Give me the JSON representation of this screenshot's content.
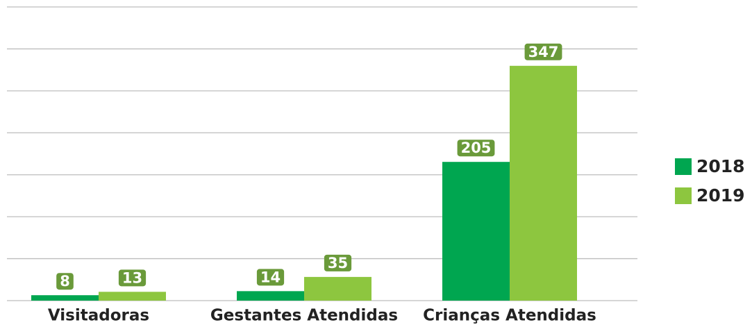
{
  "chart_data": {
    "type": "bar",
    "categories": [
      "Visitadoras",
      "Gestantes Atendidas",
      "Crianças Atendidas"
    ],
    "series": [
      {
        "name": "2018",
        "color": "#00a650",
        "values": [
          8,
          14,
          205
        ]
      },
      {
        "name": "2019",
        "color": "#8dc63f",
        "values": [
          13,
          35,
          347
        ]
      }
    ],
    "ylim": [
      0,
      434
    ],
    "yticks": [
      0,
      62,
      124,
      186,
      248,
      310,
      372,
      434
    ],
    "grid": true,
    "legend": "right",
    "label_color": "#6a9a3a"
  }
}
